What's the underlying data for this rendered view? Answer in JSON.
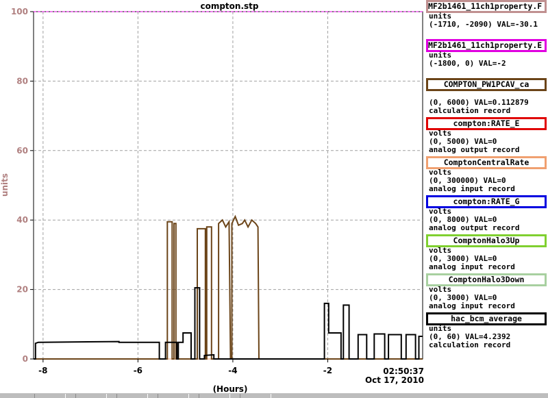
{
  "chart_data": {
    "type": "line",
    "title": "compton.stp",
    "ylabel": "units",
    "xlabel": "(Hours)",
    "xlim": [
      -8.2,
      0
    ],
    "ylim": [
      0,
      100
    ],
    "x_ticks": [
      "-8",
      "-6",
      "-4",
      "-2"
    ],
    "x_tick_values": [
      -8,
      -6,
      -4,
      -2
    ],
    "y_ticks": [
      "0",
      "20",
      "40",
      "60",
      "80",
      "100"
    ],
    "y_tick_values": [
      0,
      20,
      40,
      60,
      80,
      100
    ],
    "grid": true,
    "timestamp": "02:50:37",
    "date": "Oct 17, 2010",
    "reference_lines": [
      {
        "value": 100,
        "color": "#e000e0"
      },
      {
        "value": 0,
        "color": "#f0a070"
      }
    ],
    "series": [
      {
        "name": "COMPTON_PW1PCAV_ca",
        "color": "#6b4418",
        "points": [
          [
            -8.2,
            0
          ],
          [
            -5.38,
            0
          ],
          [
            -5.38,
            39.5
          ],
          [
            -5.28,
            39.5
          ],
          [
            -5.28,
            0
          ],
          [
            -5.24,
            0
          ],
          [
            -5.24,
            39
          ],
          [
            -5.2,
            39
          ],
          [
            -5.2,
            0
          ],
          [
            -4.75,
            0
          ],
          [
            -4.75,
            37.5
          ],
          [
            -4.58,
            37.5
          ],
          [
            -4.58,
            0
          ],
          [
            -4.55,
            0
          ],
          [
            -4.55,
            38
          ],
          [
            -4.45,
            38
          ],
          [
            -4.45,
            0
          ],
          [
            -4.3,
            0
          ],
          [
            -4.3,
            39
          ],
          [
            -4.22,
            40
          ],
          [
            -4.15,
            38
          ],
          [
            -4.08,
            39.5
          ],
          [
            -4.05,
            0
          ],
          [
            -4.02,
            0
          ],
          [
            -4.02,
            39
          ],
          [
            -3.95,
            41
          ],
          [
            -3.88,
            38.5
          ],
          [
            -3.8,
            39
          ],
          [
            -3.75,
            40
          ],
          [
            -3.68,
            38
          ],
          [
            -3.6,
            40
          ],
          [
            -3.52,
            39
          ],
          [
            -3.47,
            38
          ],
          [
            -3.45,
            0
          ],
          [
            0,
            0
          ]
        ]
      },
      {
        "name": "hac_bcm_average",
        "color": "#000000",
        "points": [
          [
            -8.2,
            0
          ],
          [
            -8.16,
            0
          ],
          [
            -8.16,
            4.5
          ],
          [
            -8.1,
            4.8
          ],
          [
            -6.4,
            5
          ],
          [
            -6.4,
            4.8
          ],
          [
            -5.55,
            4.8
          ],
          [
            -5.55,
            0
          ],
          [
            -5.42,
            0
          ],
          [
            -5.42,
            4.8
          ],
          [
            -5.18,
            4.8
          ],
          [
            -5.18,
            0
          ],
          [
            -5.15,
            0
          ],
          [
            -5.15,
            4.8
          ],
          [
            -5.05,
            4.8
          ],
          [
            -5.05,
            7.5
          ],
          [
            -4.88,
            7.5
          ],
          [
            -4.88,
            0
          ],
          [
            -4.8,
            0
          ],
          [
            -4.8,
            20.5
          ],
          [
            -4.7,
            20.5
          ],
          [
            -4.7,
            0
          ],
          [
            -4.6,
            0
          ],
          [
            -4.6,
            1
          ],
          [
            -4.4,
            1.2
          ],
          [
            -4.4,
            0
          ],
          [
            -2.07,
            0
          ],
          [
            -2.07,
            16
          ],
          [
            -1.98,
            16
          ],
          [
            -1.98,
            7.5
          ],
          [
            -1.72,
            7.5
          ],
          [
            -1.72,
            0
          ],
          [
            -1.67,
            0
          ],
          [
            -1.67,
            15.5
          ],
          [
            -1.55,
            15.5
          ],
          [
            -1.55,
            0
          ],
          [
            -1.36,
            0
          ],
          [
            -1.36,
            7
          ],
          [
            -1.18,
            7
          ],
          [
            -1.18,
            0
          ],
          [
            -1.02,
            0
          ],
          [
            -1.02,
            7.2
          ],
          [
            -0.8,
            7.2
          ],
          [
            -0.8,
            0
          ],
          [
            -0.72,
            0
          ],
          [
            -0.72,
            7
          ],
          [
            -0.45,
            7
          ],
          [
            -0.45,
            0
          ],
          [
            -0.35,
            0
          ],
          [
            -0.35,
            7
          ],
          [
            -0.15,
            7
          ],
          [
            -0.15,
            0
          ],
          [
            -0.08,
            0
          ],
          [
            -0.08,
            6.5
          ],
          [
            0,
            6.5
          ]
        ]
      }
    ]
  },
  "legend": [
    {
      "label": "MF2b1461_11ch1property.F",
      "color": "#c09090",
      "align": "left",
      "unit": "units",
      "range": "(-1710, -2090) VAL=-30.1",
      "record": ""
    },
    {
      "label": "MF2b1461_11ch1property.E",
      "color": "#e000e0",
      "align": "left",
      "unit": "units",
      "range": "(-1800, 0) VAL=-2",
      "record": ""
    },
    {
      "label": "COMPTON_PW1PCAV_ca",
      "color": "#6b4418",
      "align": "center",
      "unit": "",
      "range": "(0, 6000) VAL=0.112879",
      "record": "calculation record"
    },
    {
      "label": "compton:RATE_E",
      "color": "#e00000",
      "align": "center",
      "unit": "volts",
      "range": "(0, 5000)  VAL=0",
      "record": "analog output record"
    },
    {
      "label": "ComptonCentralRate",
      "color": "#f0a070",
      "align": "center",
      "unit": "volts",
      "range": "(0, 300000) VAL=0",
      "record": "analog input record"
    },
    {
      "label": "compton:RATE_G",
      "color": "#0000e0",
      "align": "center",
      "unit": "volts",
      "range": "(0, 8000) VAL=0",
      "record": "analog output record"
    },
    {
      "label": "ComptonHalo3Up",
      "color": "#80d030",
      "align": "center",
      "unit": "volts",
      "range": "(0, 3000)  VAL=0",
      "record": "analog input record"
    },
    {
      "label": "ComptonHalo3Down",
      "color": "#a8d0a0",
      "align": "center",
      "unit": "volts",
      "range": "(0, 3000)  VAL=0",
      "record": "analog input record"
    },
    {
      "label": "hac_bcm_average",
      "color": "#000000",
      "align": "center",
      "unit": "units",
      "range": "(0, 60) VAL=4.2392",
      "record": "calculation record"
    }
  ]
}
